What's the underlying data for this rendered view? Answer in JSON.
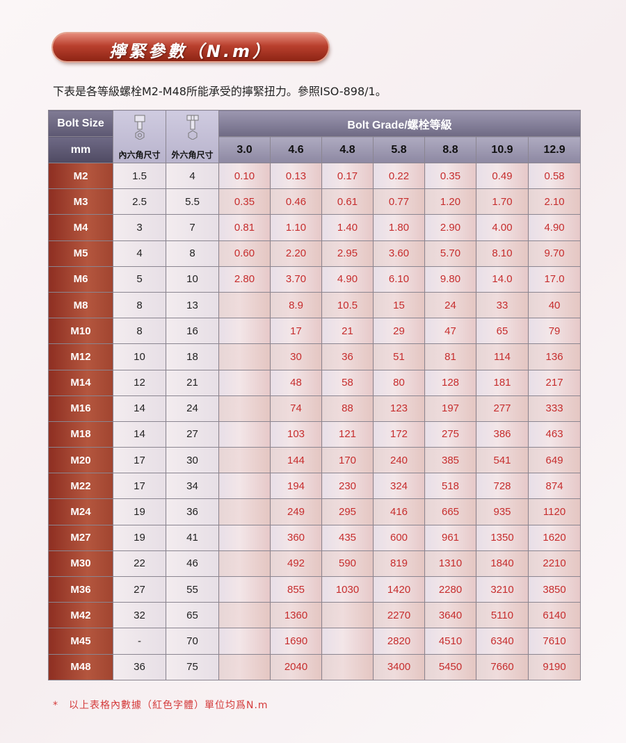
{
  "title": "擰緊參數（N.m）",
  "intro": "下表是各等級螺栓M2-M48所能承受的擰緊扭力。參照ISO-898/1。",
  "table": {
    "header": {
      "bolt_size": "Bolt Size",
      "mm": "mm",
      "hex_socket_label": "內六角尺寸",
      "hex_outer_label": "外六角尺寸",
      "bolt_grade": "Bolt Grade/螺栓等級",
      "grades": [
        "3.0",
        "4.6",
        "4.8",
        "5.8",
        "8.8",
        "10.9",
        "12.9"
      ]
    },
    "rows": [
      {
        "size": "M2",
        "inner": "1.5",
        "outer": "4",
        "values": [
          "0.10",
          "0.13",
          "0.17",
          "0.22",
          "0.35",
          "0.49",
          "0.58"
        ]
      },
      {
        "size": "M3",
        "inner": "2.5",
        "outer": "5.5",
        "values": [
          "0.35",
          "0.46",
          "0.61",
          "0.77",
          "1.20",
          "1.70",
          "2.10"
        ]
      },
      {
        "size": "M4",
        "inner": "3",
        "outer": "7",
        "values": [
          "0.81",
          "1.10",
          "1.40",
          "1.80",
          "2.90",
          "4.00",
          "4.90"
        ]
      },
      {
        "size": "M5",
        "inner": "4",
        "outer": "8",
        "values": [
          "0.60",
          "2.20",
          "2.95",
          "3.60",
          "5.70",
          "8.10",
          "9.70"
        ]
      },
      {
        "size": "M6",
        "inner": "5",
        "outer": "10",
        "values": [
          "2.80",
          "3.70",
          "4.90",
          "6.10",
          "9.80",
          "14.0",
          "17.0"
        ]
      },
      {
        "size": "M8",
        "inner": "8",
        "outer": "13",
        "values": [
          "",
          "8.9",
          "10.5",
          "15",
          "24",
          "33",
          "40"
        ]
      },
      {
        "size": "M10",
        "inner": "8",
        "outer": "16",
        "values": [
          "",
          "17",
          "21",
          "29",
          "47",
          "65",
          "79"
        ]
      },
      {
        "size": "M12",
        "inner": "10",
        "outer": "18",
        "values": [
          "",
          "30",
          "36",
          "51",
          "81",
          "114",
          "136"
        ]
      },
      {
        "size": "M14",
        "inner": "12",
        "outer": "21",
        "values": [
          "",
          "48",
          "58",
          "80",
          "128",
          "181",
          "217"
        ]
      },
      {
        "size": "M16",
        "inner": "14",
        "outer": "24",
        "values": [
          "",
          "74",
          "88",
          "123",
          "197",
          "277",
          "333"
        ]
      },
      {
        "size": "M18",
        "inner": "14",
        "outer": "27",
        "values": [
          "",
          "103",
          "121",
          "172",
          "275",
          "386",
          "463"
        ]
      },
      {
        "size": "M20",
        "inner": "17",
        "outer": "30",
        "values": [
          "",
          "144",
          "170",
          "240",
          "385",
          "541",
          "649"
        ]
      },
      {
        "size": "M22",
        "inner": "17",
        "outer": "34",
        "values": [
          "",
          "194",
          "230",
          "324",
          "518",
          "728",
          "874"
        ]
      },
      {
        "size": "M24",
        "inner": "19",
        "outer": "36",
        "values": [
          "",
          "249",
          "295",
          "416",
          "665",
          "935",
          "1120"
        ]
      },
      {
        "size": "M27",
        "inner": "19",
        "outer": "41",
        "values": [
          "",
          "360",
          "435",
          "600",
          "961",
          "1350",
          "1620"
        ]
      },
      {
        "size": "M30",
        "inner": "22",
        "outer": "46",
        "values": [
          "",
          "492",
          "590",
          "819",
          "1310",
          "1840",
          "2210"
        ]
      },
      {
        "size": "M36",
        "inner": "27",
        "outer": "55",
        "values": [
          "",
          "855",
          "1030",
          "1420",
          "2280",
          "3210",
          "3850"
        ]
      },
      {
        "size": "M42",
        "inner": "32",
        "outer": "65",
        "values": [
          "",
          "1360",
          "",
          "2270",
          "3640",
          "5110",
          "6140"
        ]
      },
      {
        "size": "M45",
        "inner": "-",
        "outer": "70",
        "values": [
          "",
          "1690",
          "",
          "2820",
          "4510",
          "6340",
          "7610"
        ]
      },
      {
        "size": "M48",
        "inner": "36",
        "outer": "75",
        "values": [
          "",
          "2040",
          "",
          "3400",
          "5450",
          "7660",
          "9190"
        ]
      }
    ]
  },
  "footnote": "*　以上表格內數據（紅色字體）單位均爲N.m",
  "colors": {
    "accent": "#b9402e",
    "value_text": "#c62d2d",
    "header": "#6e6985"
  },
  "icons": {
    "inner": "hex-socket-bolt-icon",
    "outer": "hex-head-bolt-icon"
  }
}
